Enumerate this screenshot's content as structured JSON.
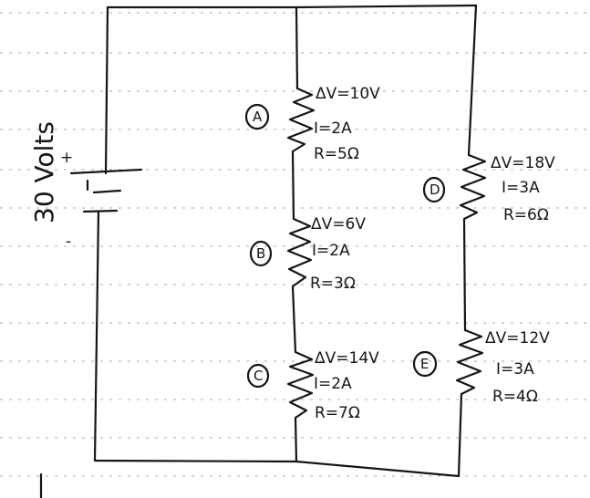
{
  "battery": {
    "voltage": "30 Volts",
    "plus": "+",
    "minus": "-"
  },
  "resistors": [
    {
      "letter": "A",
      "dv": "ΔV=10V",
      "i": "I=2A",
      "r": "R=5Ω"
    },
    {
      "letter": "B",
      "dv": "ΔV=6V",
      "i": "I=2A",
      "r": "R=3Ω"
    },
    {
      "letter": "C",
      "dv": "ΔV=14V",
      "i": "I=2A",
      "r": "R=7Ω"
    },
    {
      "letter": "D",
      "dv": "ΔV=18V",
      "i": "I=3A",
      "r": "R=6Ω"
    },
    {
      "letter": "E",
      "dv": "ΔV=12V",
      "i": "I=3A",
      "r": "R=4Ω"
    }
  ]
}
